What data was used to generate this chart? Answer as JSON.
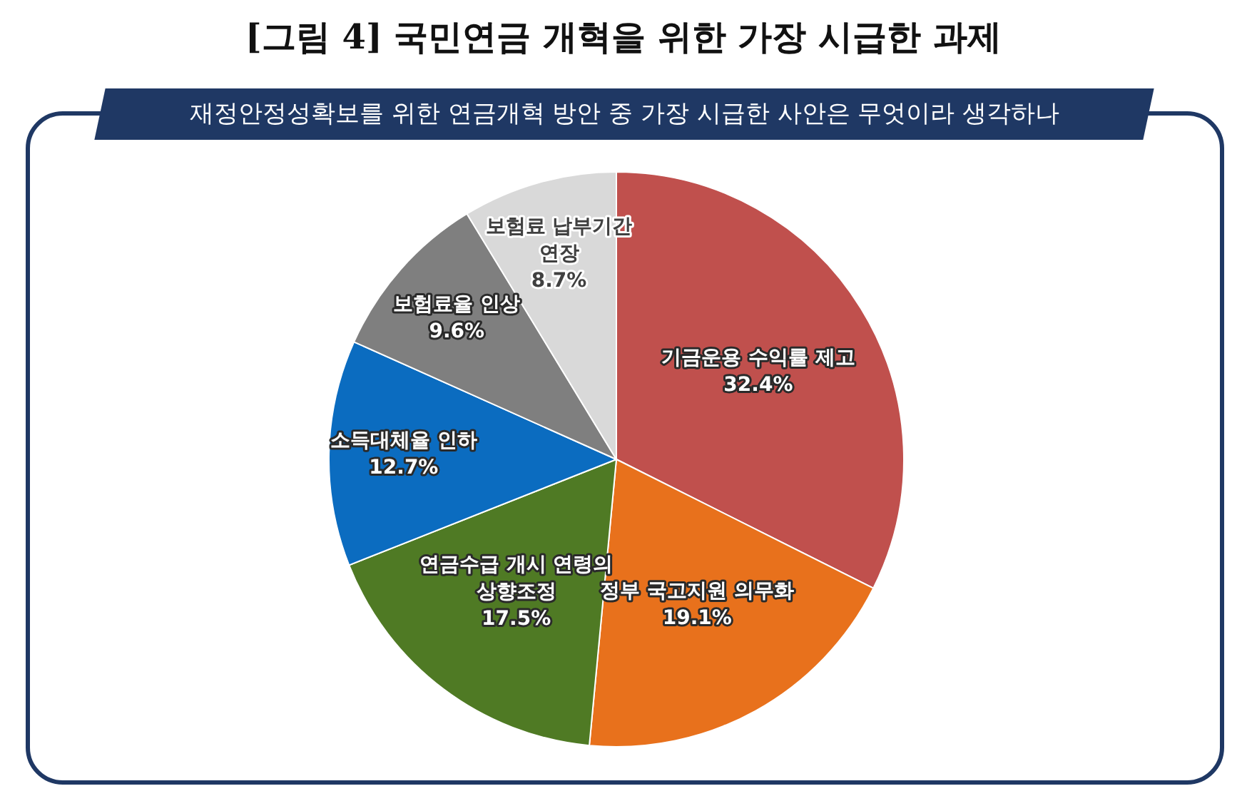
{
  "chart_data": {
    "type": "pie",
    "title": "[그림 4] 국민연금 개혁을 위한 가장 시급한 과제",
    "subtitle": "재정안정성확보를 위한 연금개혁 방안 중 가장 시급한 사안은 무엇이라 생각하나",
    "categories": [
      "기금운용 수익률 제고",
      "정부 국고지원 의무화",
      "연금수급 개시 연령의 상향조정",
      "소득대체율 인하",
      "보험료율 인상",
      "보험료 납부기간 연장"
    ],
    "values": [
      32.4,
      19.1,
      17.5,
      12.7,
      9.6,
      8.7
    ],
    "colors": [
      "#c0504d",
      "#e8711c",
      "#4f7a24",
      "#0b6cc0",
      "#7f7f7f",
      "#d9d9d9"
    ],
    "value_labels": [
      "32.4%",
      "19.1%",
      "17.5%",
      "12.7%",
      "9.6%",
      "8.7%"
    ],
    "legend": false
  }
}
